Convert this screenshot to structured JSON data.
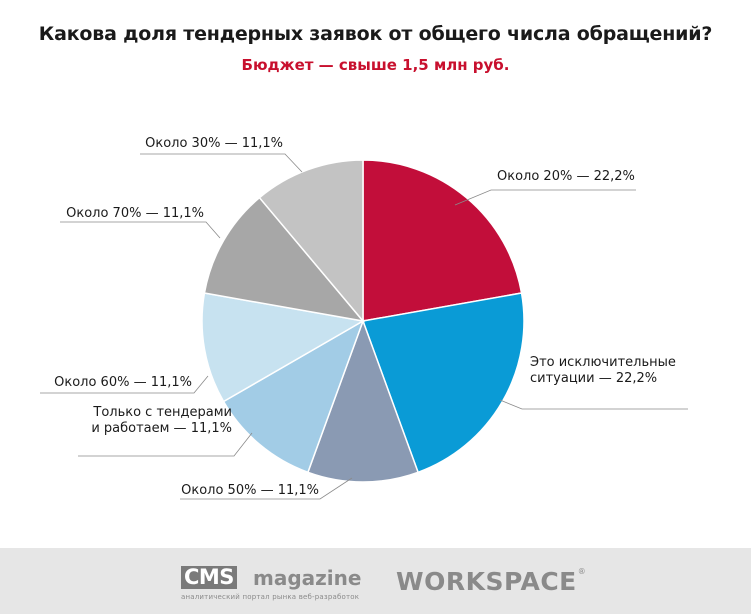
{
  "title": "Какова доля тендерных заявок от общего числа обращений?",
  "subtitle": "Бюджет — свыше 1,5 млн руб.",
  "chart_data": {
    "type": "pie",
    "slices": [
      {
        "label_lines": [
          "Около 20% — 22,2%"
        ],
        "value": 22.2,
        "color": "#c20e3a"
      },
      {
        "label_lines": [
          "Это исключительные",
          "ситуации  — 22,2%"
        ],
        "value": 22.2,
        "color": "#0a9bd6"
      },
      {
        "label_lines": [
          "Около 50% — 11,1%"
        ],
        "value": 11.1,
        "color": "#8a9ab3"
      },
      {
        "label_lines": [
          "Только с тендерами",
          "и работаем — 11,1%"
        ],
        "value": 11.1,
        "color": "#a2cce6"
      },
      {
        "label_lines": [
          "Около 60% — 11,1%"
        ],
        "value": 11.1,
        "color": "#c7e2f0"
      },
      {
        "label_lines": [
          "Около 70% — 11,1%"
        ],
        "value": 11.1,
        "color": "#a7a7a7"
      },
      {
        "label_lines": [
          "Около 30% — 11,1%"
        ],
        "value": 11.1,
        "color": "#c3c3c3"
      }
    ]
  },
  "footer": {
    "cms_box": "CMS",
    "cms_word": "magazine",
    "cms_tagline": "аналитический портал рынка веб-разработок",
    "workspace": "WORKSPACE",
    "workspace_reg": "®"
  }
}
